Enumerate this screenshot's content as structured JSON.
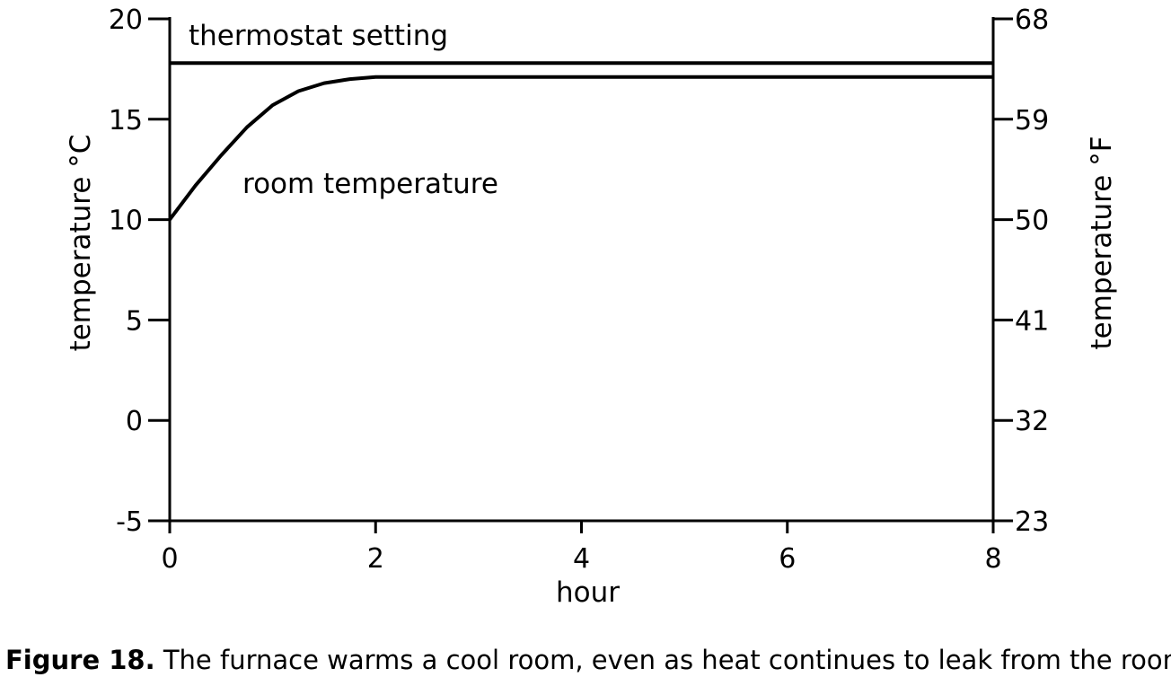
{
  "chart_data": {
    "type": "line",
    "xlabel": "hour",
    "ylabel_left": "temperature °C",
    "ylabel_right": "temperature °F",
    "xlim": [
      0,
      8
    ],
    "ylim": [
      -5,
      20
    ],
    "x_ticks": [
      0,
      2,
      4,
      6,
      8
    ],
    "y_ticks_left": [
      -5,
      0,
      5,
      10,
      15,
      20
    ],
    "y_ticks_right": [
      {
        "c": -5,
        "label": "23"
      },
      {
        "c": 0,
        "label": "32"
      },
      {
        "c": 5,
        "label": "41"
      },
      {
        "c": 10,
        "label": "50"
      },
      {
        "c": 15,
        "label": "59"
      },
      {
        "c": 20,
        "label": "68"
      }
    ],
    "series": [
      {
        "name": "thermostat setting",
        "x": [
          0,
          8
        ],
        "y": [
          17.8,
          17.8
        ]
      },
      {
        "name": "room temperature",
        "x": [
          0,
          0.25,
          0.5,
          0.75,
          1.0,
          1.25,
          1.5,
          1.75,
          2.0,
          2.1,
          3,
          4,
          5,
          6,
          7,
          8
        ],
        "y": [
          10.0,
          11.7,
          13.2,
          14.6,
          15.7,
          16.4,
          16.8,
          17.0,
          17.1,
          17.1,
          17.1,
          17.1,
          17.1,
          17.1,
          17.1,
          17.1
        ]
      }
    ],
    "grid": false,
    "legend": "none"
  },
  "caption": {
    "label": "Figure 18.",
    "text": " The furnace warms a cool room, even as heat continues to leak from the room."
  }
}
